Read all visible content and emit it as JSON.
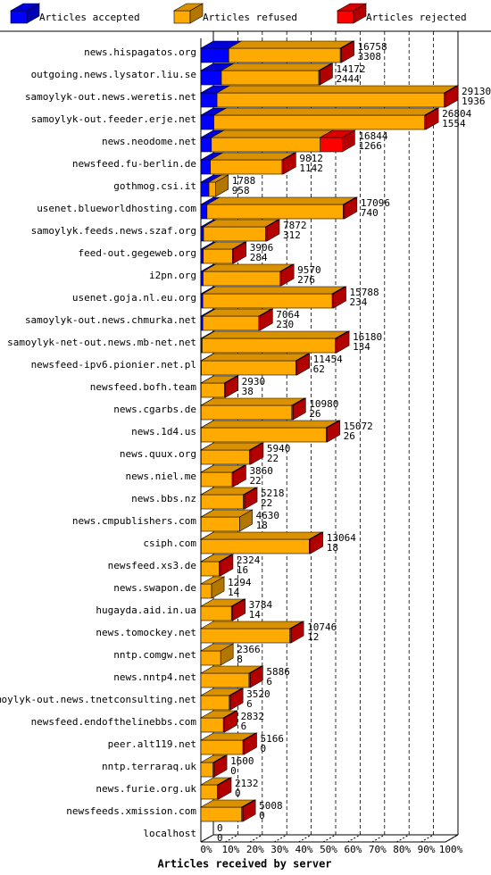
{
  "chart_data": {
    "type": "bar",
    "orientation": "horizontal",
    "stacked": true,
    "three_d": true,
    "x_label": "Articles received by server",
    "categories": [
      "news.hispagatos.org",
      "outgoing.news.lysator.liu.se",
      "samoylyk-out.news.weretis.net",
      "samoylyk-out.feeder.erje.net",
      "news.neodome.net",
      "newsfeed.fu-berlin.de",
      "gothmog.csi.it",
      "usenet.blueworldhosting.com",
      "samoylyk.feeds.news.szaf.org",
      "feed-out.gegeweb.org",
      "i2pn.org",
      "usenet.goja.nl.eu.org",
      "samoylyk-out.news.chmurka.net",
      "samoylyk-net-out.news.mb-net.net",
      "newsfeed-ipv6.pionier.net.pl",
      "newsfeed.bofh.team",
      "news.cgarbs.de",
      "news.1d4.us",
      "news.quux.org",
      "news.niel.me",
      "news.bbs.nz",
      "news.cmpublishers.com",
      "csiph.com",
      "newsfeed.xs3.de",
      "news.swapon.de",
      "hugayda.aid.in.ua",
      "news.tomockey.net",
      "nntp.comgw.net",
      "news.nntp4.net",
      "samoylyk-out.news.tnetconsulting.net",
      "newsfeed.endofthelinebbs.com",
      "peer.alt119.net",
      "nntp.terraraq.uk",
      "news.furie.org.uk",
      "newsfeeds.xmission.com",
      "localhost"
    ],
    "series": [
      {
        "name": "Articles accepted",
        "color": "#0000ff",
        "values": [
          11.4,
          8.4,
          6.6,
          5.3,
          4.3,
          3.9,
          3.3,
          2.5,
          1.1,
          1.0,
          0.9,
          0.8,
          0.8,
          0.5,
          0.2,
          0.1,
          0.1,
          0.1,
          0.1,
          0.1,
          0.1,
          0.1,
          0.1,
          0.1,
          0,
          0,
          0,
          0,
          0,
          0,
          0,
          0,
          0,
          0,
          0,
          0
        ]
      },
      {
        "name": "Articles refused",
        "color": "#ffaa00",
        "values": [
          45.6,
          39.8,
          92.9,
          86.2,
          44.5,
          29.3,
          2.8,
          55.7,
          25.4,
          11.9,
          31.5,
          52.9,
          22.9,
          54.5,
          38.6,
          9.5,
          37.1,
          51.1,
          19.8,
          12.7,
          17.3,
          15.8,
          44.2,
          7.4,
          4.4,
          12.5,
          36.4,
          8.1,
          19.7,
          11.6,
          9.2,
          17.2,
          5.0,
          6.8,
          16.7,
          0
        ]
      },
      {
        "name": "Articles rejected",
        "color": "#ff0000",
        "values": [
          0.5,
          0.5,
          0.5,
          0.5,
          9,
          0.5,
          0,
          0.5,
          0.5,
          0.5,
          0.5,
          0.5,
          0.5,
          0.5,
          0.5,
          0.5,
          0.5,
          0.5,
          0.5,
          0.5,
          0.5,
          0,
          0.5,
          0.5,
          0,
          0.5,
          0.5,
          0,
          0.5,
          0.5,
          0.5,
          0.5,
          0.5,
          0.5,
          0.5,
          0
        ]
      }
    ],
    "row_labels": [
      [
        16758,
        3308
      ],
      [
        14172,
        2444
      ],
      [
        29130,
        1936
      ],
      [
        26804,
        1554
      ],
      [
        16844,
        1266
      ],
      [
        9812,
        1142
      ],
      [
        1788,
        958
      ],
      [
        17096,
        740
      ],
      [
        7872,
        312
      ],
      [
        3906,
        284
      ],
      [
        9570,
        276
      ],
      [
        15788,
        234
      ],
      [
        7064,
        230
      ],
      [
        16180,
        134
      ],
      [
        11454,
        62
      ],
      [
        2930,
        38
      ],
      [
        10980,
        26
      ],
      [
        15072,
        26
      ],
      [
        5940,
        22
      ],
      [
        3860,
        22
      ],
      [
        5218,
        22
      ],
      [
        4630,
        18
      ],
      [
        13064,
        18
      ],
      [
        2324,
        16
      ],
      [
        1294,
        14
      ],
      [
        3784,
        14
      ],
      [
        10746,
        12
      ],
      [
        2366,
        8
      ],
      [
        5886,
        6
      ],
      [
        3520,
        6
      ],
      [
        2832,
        6
      ],
      [
        5166,
        0
      ],
      [
        1600,
        0
      ],
      [
        2132,
        0
      ],
      [
        5008,
        0
      ],
      [
        0,
        0
      ]
    ],
    "xlim": [
      0,
      100
    ],
    "xticks": [
      {
        "value": 0,
        "label": "0%"
      },
      {
        "value": 10,
        "label": "10%"
      },
      {
        "value": 20,
        "label": "20%"
      },
      {
        "value": 30,
        "label": "30%"
      },
      {
        "value": 40,
        "label": "40%"
      },
      {
        "value": 50,
        "label": "50%"
      },
      {
        "value": 60,
        "label": "60%"
      },
      {
        "value": 70,
        "label": "70%"
      },
      {
        "value": 80,
        "label": "80%"
      },
      {
        "value": 90,
        "label": "90%"
      },
      {
        "value": 100,
        "label": "100%"
      }
    ],
    "grid": true,
    "legend": "top"
  }
}
